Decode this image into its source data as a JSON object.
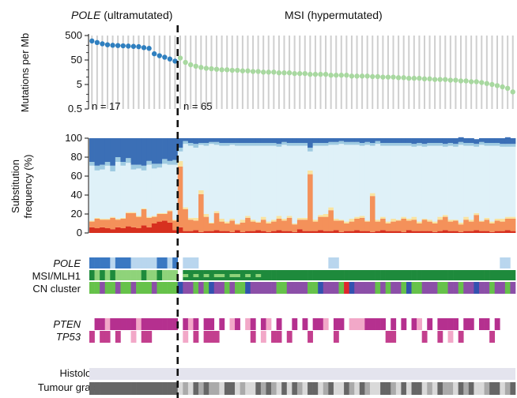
{
  "groups": {
    "pole": {
      "italic": "POLE",
      "rest": " (ultramutated)",
      "n_label": "n = 17",
      "n": 17
    },
    "msi": {
      "label": "MSI (hypermutated)",
      "n_label": "n = 65",
      "n": 65
    }
  },
  "panel_labels": {
    "mutations_ylabel": "Mutations per Mb",
    "substitution_ylabel_1": "Substitution",
    "substitution_ylabel_2": "frequency (%)",
    "pole_track": "POLE",
    "msi_track": "MSI/MLH1",
    "cn_track": "CN cluster",
    "pten_track": "PTEN",
    "tp53_track": "TP53",
    "histology_track": "Histology",
    "grade_track": "Tumour grade"
  },
  "colors": {
    "pole_dots": "#2f7fbf",
    "msi_dots": "#a8d8a0",
    "c_to_a": "#3b6fb6",
    "c_to_g": "#9ecae1",
    "c_to_t": "#dff1f8",
    "t_to_a": "#f9e3a0",
    "t_to_c": "#f4915a",
    "t_to_g": "#d7301f",
    "pole_mut": "#3a78c2",
    "pole_mut_light": "#b9d6ee",
    "msi_dark": "#1e8a3c",
    "msi_light": "#8fd37a",
    "cn_green": "#66c24a",
    "cn_purple": "#8c4fa8",
    "cn_blue": "#3352b0",
    "cn_red": "#e0262c",
    "pten": "#b5308f",
    "pten_light": "#f2a8c8",
    "tp53": "#c33f8e",
    "histology": "#e4e4ee",
    "grade_dark": "#666666",
    "grade_mid": "#aaaaaa",
    "grade_light": "#d9d9d9"
  },
  "chart_data": [
    {
      "type": "scatter",
      "ylabel": "Mutations per Mb",
      "yscale": "log",
      "ylim": [
        0.5,
        500
      ],
      "yticks": [
        "500",
        "50",
        "5",
        "0.5"
      ],
      "series": [
        {
          "name": "POLE (ultramutated)",
          "values": [
            300,
            260,
            230,
            210,
            200,
            195,
            190,
            185,
            180,
            175,
            160,
            150,
            90,
            75,
            65,
            55,
            45
          ]
        },
        {
          "name": "MSI (hypermutated)",
          "values": [
            60,
            40,
            32,
            28,
            25,
            23,
            22,
            21,
            20,
            20,
            19,
            19,
            18,
            18,
            17,
            17,
            16,
            16,
            16,
            15,
            15,
            15,
            14,
            14,
            14,
            13,
            13,
            13,
            13,
            12,
            12,
            12,
            12,
            11,
            11,
            11,
            11,
            10.5,
            10.5,
            10,
            10,
            10,
            9.5,
            9.5,
            9,
            9,
            9,
            8.5,
            8.5,
            8,
            8,
            8,
            7.5,
            7.5,
            7,
            7,
            6.5,
            6.5,
            6,
            5.5,
            5,
            4.5,
            4,
            3.5,
            2.5
          ]
        }
      ]
    },
    {
      "type": "bar",
      "stacked": true,
      "ylabel": "Substitution frequency (%)",
      "ylim": [
        0,
        100
      ],
      "yticks": [
        "0",
        "20",
        "40",
        "60",
        "80",
        "100"
      ],
      "series": [
        {
          "name": "t_to_g",
          "values": [
            6,
            5,
            6,
            5,
            4,
            6,
            5,
            7,
            6,
            5,
            8,
            6,
            10,
            12,
            13,
            11,
            3,
            6,
            2,
            2,
            3,
            1,
            2,
            2,
            3,
            2,
            2,
            1,
            3,
            1,
            2,
            2,
            3,
            2,
            1,
            2,
            3,
            2,
            2,
            1,
            4,
            2,
            2,
            2,
            3,
            2,
            2,
            3,
            1,
            2,
            2,
            3,
            2,
            2,
            1,
            2,
            3,
            2,
            2,
            2,
            1,
            3,
            2,
            2,
            2,
            2,
            1,
            2,
            3,
            2,
            2,
            1,
            2,
            2,
            3,
            2,
            2,
            1,
            2,
            2,
            3,
            2
          ]
        },
        {
          "name": "t_to_c",
          "values": [
            6,
            10,
            8,
            9,
            12,
            8,
            10,
            14,
            15,
            12,
            17,
            10,
            7,
            8,
            7,
            12,
            10,
            64,
            23,
            12,
            10,
            40,
            15,
            8,
            18,
            10,
            8,
            12,
            6,
            10,
            14,
            10,
            8,
            12,
            9,
            10,
            12,
            11,
            14,
            8,
            10,
            12,
            60,
            10,
            14,
            15,
            22,
            10,
            12,
            8,
            10,
            12,
            14,
            10,
            38,
            10,
            12,
            8,
            10,
            11,
            14,
            10,
            12,
            8,
            12,
            10,
            9,
            12,
            14,
            10,
            11,
            8,
            12,
            10,
            16,
            10,
            12,
            9,
            11,
            10,
            12,
            13
          ]
        },
        {
          "name": "t_to_a",
          "values": [
            1,
            1,
            1,
            1,
            1,
            1,
            1,
            1,
            1,
            1,
            1,
            1,
            1,
            1,
            1,
            1,
            1,
            6,
            2,
            2,
            3,
            4,
            3,
            1,
            2,
            3,
            2,
            2,
            1,
            3,
            2,
            2,
            1,
            3,
            2,
            2,
            3,
            2,
            2,
            1,
            2,
            2,
            4,
            2,
            2,
            3,
            3,
            2,
            1,
            2,
            3,
            2,
            2,
            1,
            3,
            2,
            2,
            2,
            3,
            1,
            2,
            2,
            3,
            2,
            1,
            2,
            2,
            3,
            2,
            2,
            1,
            2,
            3,
            2,
            2,
            1,
            2,
            2,
            2,
            3,
            2,
            2
          ]
        },
        {
          "name": "c_to_t",
          "values": [
            58,
            50,
            52,
            56,
            48,
            60,
            55,
            52,
            45,
            50,
            40,
            55,
            50,
            48,
            52,
            48,
            58,
            10,
            67,
            76,
            74,
            48,
            72,
            83,
            70,
            77,
            80,
            78,
            82,
            78,
            74,
            78,
            80,
            75,
            80,
            78,
            73,
            78,
            74,
            82,
            76,
            76,
            20,
            78,
            73,
            72,
            66,
            78,
            80,
            81,
            78,
            76,
            74,
            80,
            50,
            80,
            75,
            80,
            77,
            78,
            75,
            77,
            74,
            80,
            76,
            78,
            80,
            75,
            72,
            78,
            77,
            82,
            75,
            78,
            70,
            80,
            76,
            80,
            77,
            76,
            74,
            74
          ]
        },
        {
          "name": "c_to_g",
          "values": [
            4,
            5,
            5,
            4,
            6,
            5,
            4,
            5,
            5,
            4,
            5,
            4,
            5,
            4,
            5,
            4,
            5,
            4,
            3,
            3,
            4,
            2,
            3,
            2,
            3,
            3,
            3,
            2,
            3,
            3,
            3,
            3,
            3,
            3,
            3,
            3,
            3,
            3,
            3,
            3,
            3,
            3,
            4,
            3,
            3,
            3,
            3,
            3,
            3,
            3,
            3,
            3,
            3,
            3,
            3,
            3,
            3,
            3,
            3,
            3,
            3,
            3,
            3,
            3,
            3,
            3,
            3,
            3,
            3,
            3,
            3,
            3,
            3,
            3,
            3,
            3,
            3,
            3,
            3,
            3,
            3,
            3
          ]
        },
        {
          "name": "c_to_a",
          "values": [
            25,
            29,
            28,
            25,
            29,
            20,
            25,
            21,
            28,
            28,
            29,
            24,
            27,
            27,
            22,
            24,
            23,
            10,
            3,
            5,
            6,
            5,
            5,
            4,
            4,
            5,
            5,
            5,
            5,
            5,
            5,
            5,
            5,
            5,
            5,
            5,
            6,
            4,
            5,
            5,
            5,
            5,
            10,
            5,
            5,
            5,
            4,
            4,
            3,
            4,
            4,
            4,
            5,
            4,
            5,
            3,
            5,
            5,
            5,
            5,
            5,
            5,
            6,
            5,
            6,
            5,
            5,
            5,
            6,
            5,
            6,
            5,
            5,
            5,
            5,
            4,
            5,
            5,
            5,
            6,
            7,
            6
          ]
        }
      ]
    }
  ],
  "tracks": {
    "pole_mut": "AAAALAAALLLLLAALA-LLL-------------------------LL-------------------------------LL-----A",
    "msi": "DLDLDLLLLLDLLDLLL-DDDDDDDDDDDDDDDDDDDDDDDDDDDDDDDDDDDDDDDDDDDDDDDDDDDDDDDDDDDDDDDDDDD",
    "msi_dashes": "-----------------DKDKDKDKKDKKDKDKDDDDDDDDDDDDDDDDDDDDDDDDDDDDDDDDDDDDDDDDDDDDDDDDDDD",
    "cn": "GGPGGPGGPGGGPGGGGBPPGPGBPPGPGGBPPPPPGGPPPPGGBPPPGRBPPPPGPGPPGBGGPPPGGPPGPPBPPGPPGPR",
    "pten": "-PPLPPPPPLPPPPPPP-PLP-PP-P-LP-LP-PL-P--P-P-PPL-PP-LLLPPPP-P-P-PL-P-PPPP-PP-PP-P",
    "tp53": "P-PP-P--L-PP------L-P-PPP------P-L-PP-P---P----P---------PP-----P--P-L-P-----P",
    "grade": "DDDDDDDDDDDDDDDDDLMLDMDMMLDDLMLLDMDMLDLDMLDDLMDLLDMLDMLLDDMLDLDDLMLDMMLDMDLLMDDLMDD"
  }
}
